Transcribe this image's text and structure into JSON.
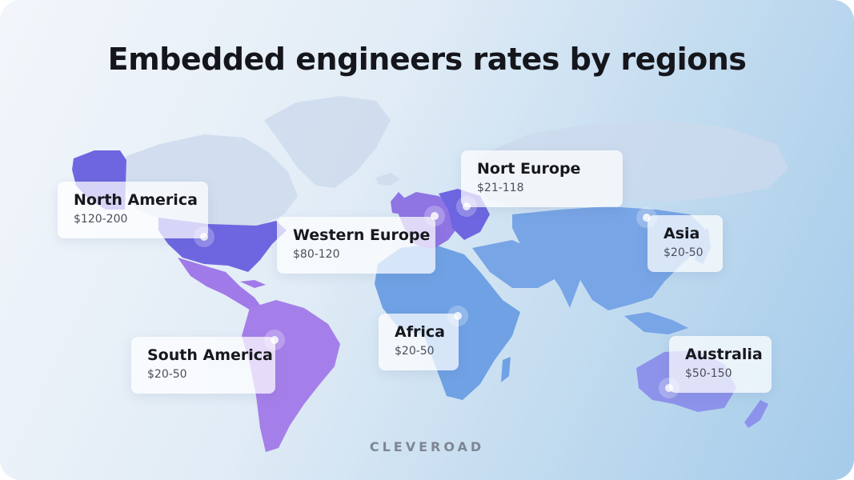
{
  "title": "Embedded engineers rates by regions",
  "brand": "CLEVEROAD",
  "regions": [
    {
      "name": "North America",
      "rate": "$120-200"
    },
    {
      "name": "Nort Europe",
      "rate": "$21-118"
    },
    {
      "name": "Western Europe",
      "rate": "$80-120"
    },
    {
      "name": "Asia",
      "rate": "$20-50"
    },
    {
      "name": "Africa",
      "rate": "$20-50"
    },
    {
      "name": "South America",
      "rate": "$20-50"
    },
    {
      "name": "Australia",
      "rate": "$50-150"
    }
  ],
  "colors": {
    "land_base": "#ccd9ec",
    "north_america": "#6e66e0",
    "central_america": "#a07ae8",
    "south_america": "#a57fe9",
    "africa": "#6fa1e4",
    "asia": "#78a5e6",
    "australia": "#8d93ea",
    "europe": "#8f74e3",
    "title": "#15161c"
  }
}
